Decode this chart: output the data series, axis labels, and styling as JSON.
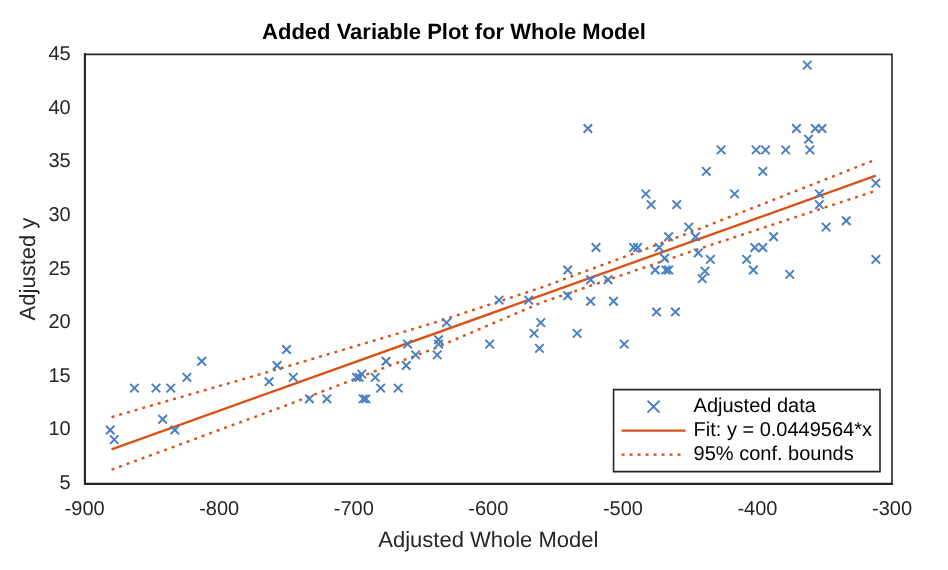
{
  "chart_data": {
    "type": "scatter",
    "title": "Added Variable Plot for Whole Model",
    "xlabel": "Adjusted Whole Model",
    "ylabel": "Adjusted y",
    "xlim": [
      -900,
      -300
    ],
    "ylim": [
      5,
      45
    ],
    "xticks": [
      -900,
      -800,
      -700,
      -600,
      -500,
      -400,
      -300
    ],
    "yticks": [
      5,
      10,
      15,
      20,
      25,
      30,
      35,
      40,
      45
    ],
    "grid": false,
    "legend": "bottom right",
    "series": [
      {
        "name": "Adjusted data",
        "color": "#4a7fc1",
        "marker": "cross",
        "x": [
          -881,
          -878,
          -863,
          -847,
          -842,
          -836,
          -833,
          -824,
          -813,
          -763,
          -757,
          -750,
          -745,
          -733,
          -720,
          -698,
          -696,
          -694,
          -693,
          -691,
          -684,
          -680,
          -676,
          -667,
          -661,
          -660,
          -654,
          -638,
          -637,
          -637,
          -631,
          -599,
          -592,
          -570,
          -566,
          -562,
          -561,
          -541,
          -541,
          -534,
          -526,
          -524,
          -524,
          -520,
          -511,
          -507,
          -499,
          -492,
          -489,
          -483,
          -479,
          -476,
          -475,
          -473,
          -469,
          -468,
          -466,
          -466,
          -461,
          -460,
          -451,
          -446,
          -444,
          -441,
          -439,
          -438,
          -435,
          -427,
          -417,
          -408,
          -403,
          -402,
          -401,
          -396,
          -396,
          -394,
          -388,
          -379,
          -376,
          -371,
          -363,
          -362,
          -361,
          -357,
          -354,
          -354,
          -352,
          -349,
          -334,
          -312,
          -312
        ],
        "values": [
          10.0,
          9.1,
          13.9,
          13.9,
          11.0,
          13.9,
          10.0,
          14.9,
          16.4,
          14.5,
          16.0,
          17.5,
          14.9,
          12.9,
          12.9,
          14.9,
          14.9,
          15.2,
          12.9,
          12.9,
          14.9,
          13.9,
          16.4,
          13.9,
          16.0,
          18.0,
          17.0,
          17.0,
          18.4,
          18.0,
          20.0,
          18.0,
          22.1,
          22.1,
          19.0,
          17.6,
          20.0,
          24.9,
          22.5,
          19.0,
          38.1,
          24.0,
          22.0,
          27.0,
          24.0,
          22.0,
          18.0,
          27.0,
          27.0,
          32.0,
          31.0,
          24.9,
          21.0,
          27.0,
          26.0,
          24.9,
          28.0,
          24.9,
          21.0,
          31.0,
          28.9,
          28.0,
          26.5,
          24.1,
          24.8,
          34.1,
          25.9,
          36.1,
          32.0,
          25.9,
          24.9,
          27.0,
          36.1,
          34.1,
          27.0,
          36.1,
          28.0,
          36.1,
          24.5,
          38.1,
          44.0,
          37.1,
          36.1,
          38.1,
          32.0,
          31.0,
          38.1,
          28.9,
          29.5,
          33.0,
          25.9
        ]
      },
      {
        "type": "line",
        "name": "Fit: y = 0.0449564*x",
        "color": "#d95319",
        "marker": "none",
        "line_style": "solid",
        "x": [
          -880,
          -312
        ],
        "values": [
          8.2,
          33.7
        ]
      },
      {
        "type": "line",
        "name": "95% conf. bounds",
        "color": "#d95319",
        "marker": "none",
        "line_style": "dotted",
        "x": [
          -880,
          -750,
          -640,
          -560,
          -450,
          -312
        ],
        "values": [
          11.2,
          15.9,
          20.0,
          23.3,
          28.4,
          35.2
        ]
      },
      {
        "type": "line",
        "color": "#d95319",
        "marker": "none",
        "line_style": "dotted",
        "x": [
          -880,
          -750,
          -640,
          -560,
          -450,
          -312
        ],
        "values": [
          6.3,
          12.3,
          17.6,
          21.9,
          26.6,
          32.3
        ]
      }
    ]
  }
}
